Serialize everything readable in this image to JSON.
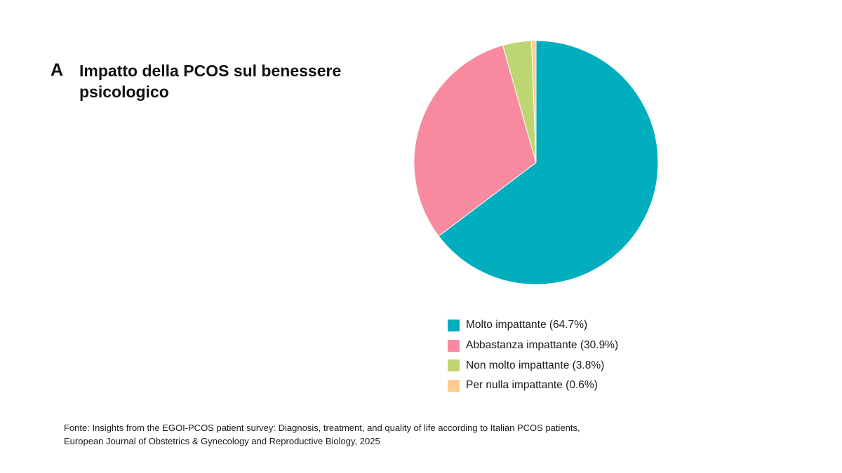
{
  "panel_label": "A",
  "chart_data": {
    "type": "pie",
    "title": "Impatto della PCOS sul benessere psicologico",
    "categories": [
      "Molto impattante",
      "Abbastanza impattante",
      "Non molto impattante",
      "Per nulla impattante"
    ],
    "values": [
      64.7,
      30.9,
      3.8,
      0.6
    ],
    "colors": [
      "#00AEBD",
      "#F78A9E",
      "#BED672",
      "#FFCC8F"
    ],
    "legend": {
      "position": "bottom-right",
      "entries": [
        "Molto impattante (64.7%)",
        "Abbastanza impattante (30.9%)",
        "Non molto impattante (3.8%)",
        "Per nulla impattante (0.6%)"
      ]
    }
  },
  "source": {
    "line1": "Fonte: Insights from the EGOI-PCOS patient survey: Diagnosis, treatment, and quality of life according to Italian PCOS patients,",
    "line2": "European Journal of Obstetrics & Gynecology and Reproductive Biology, 2025"
  }
}
